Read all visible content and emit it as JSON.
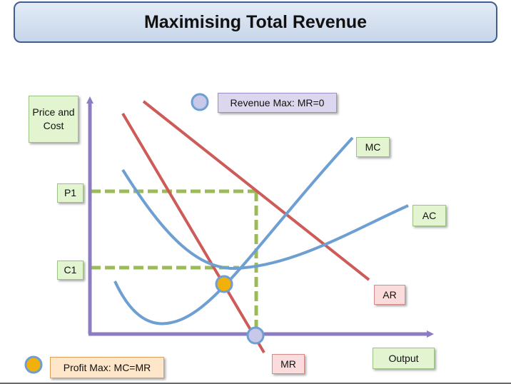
{
  "title": "Maximising Total Revenue",
  "labels": {
    "y_axis": "Price and Cost",
    "x_axis": "Output",
    "p1": "P1",
    "c1": "C1",
    "mc": "MC",
    "ac": "AC",
    "ar": "AR",
    "mr": "MR",
    "revenue_max": "Revenue Max: MR=0",
    "profit_max": "Profit Max: MC=MR"
  },
  "colors": {
    "axis": "#8e7cc3",
    "red_curve": "#cd5b57",
    "blue_curve": "#6d9fd2",
    "dashed": "#9bbb59",
    "revenue_marker": "#c8c8e8",
    "profit_marker": "#f2b10a"
  }
}
